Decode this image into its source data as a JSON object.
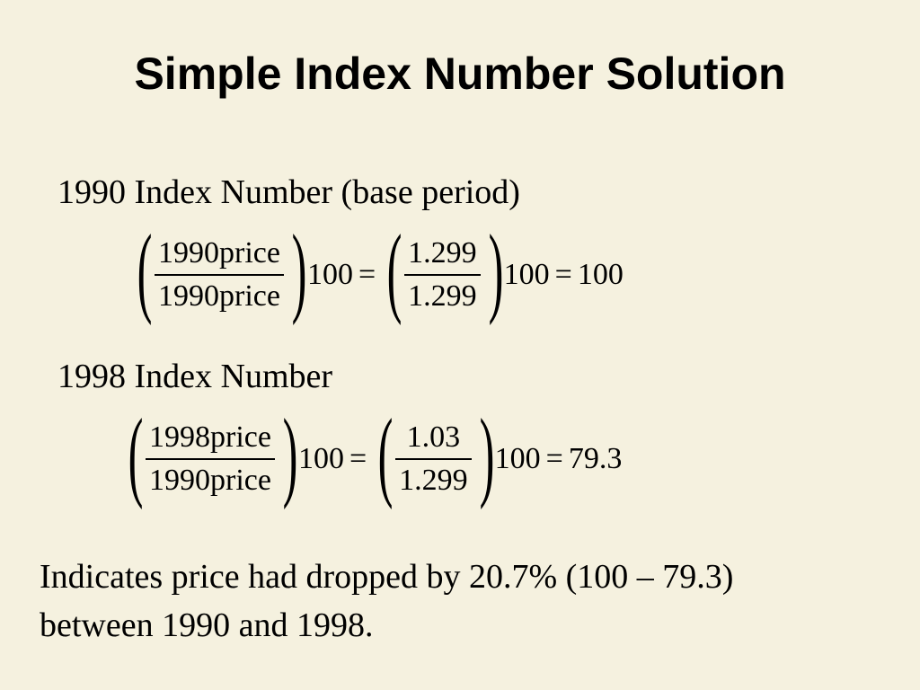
{
  "slide": {
    "title": "Simple Index Number Solution",
    "section_1990": {
      "heading": "1990 Index Number (base period)",
      "frac1_num": "1990price",
      "frac1_den": "1990price",
      "mult1": "100",
      "equals1": "=",
      "frac2_num": "1.299",
      "frac2_den": "1.299",
      "mult2": "100",
      "equals2": "=",
      "result": "100"
    },
    "section_1998": {
      "heading": "1998 Index Number",
      "frac1_num": "1998price",
      "frac1_den": "1990price",
      "mult1": "100",
      "equals1": "=",
      "frac2_num": "1.03",
      "frac2_den": "1.299",
      "mult2": "100",
      "equals2": "=",
      "result": "79.3"
    },
    "conclusion_line1": "Indicates price had dropped by 20.7% (100 – 79.3)",
    "conclusion_line2": "between 1990 and 1998."
  },
  "colors": {
    "background": "#f5f1df",
    "text": "#000000"
  }
}
